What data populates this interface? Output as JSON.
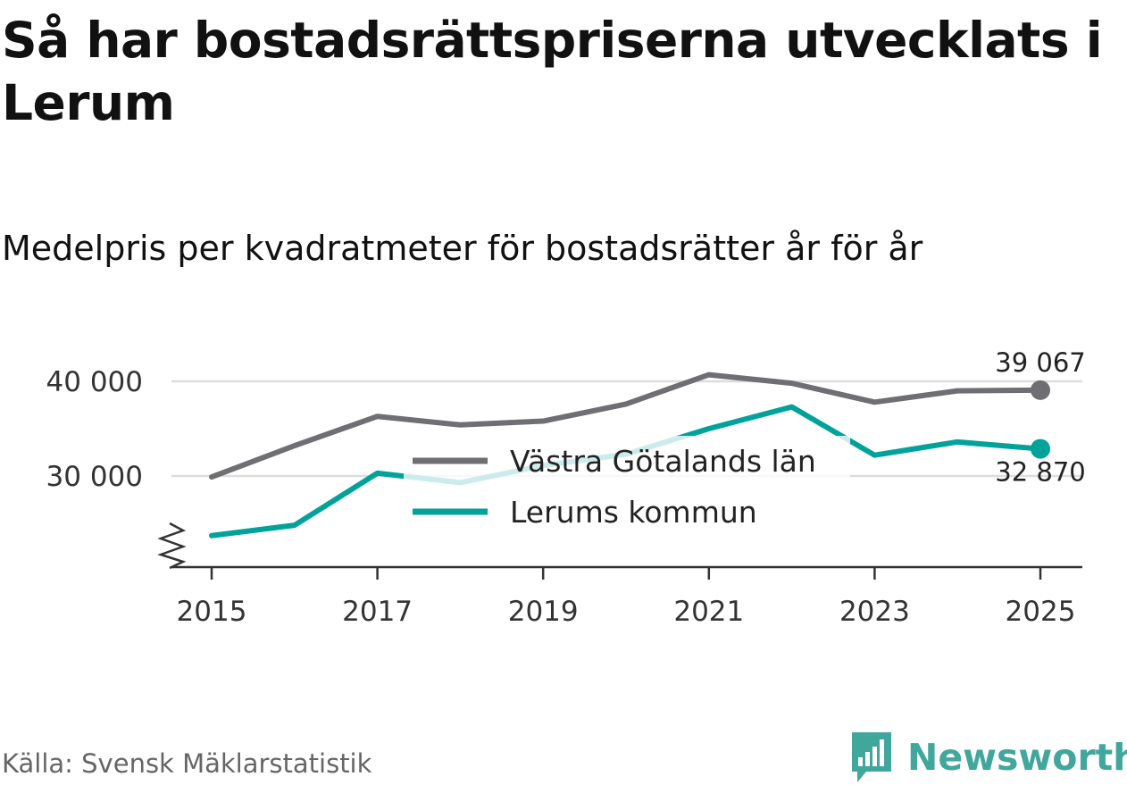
{
  "title": "Så har bostadsrättspriserna utvecklats i Lerum",
  "subtitle": "Medelpris per kvadratmeter för bostadsrätter år för år",
  "source": "Källa: Svensk Mäklarstatistik",
  "brand": "Newsworthy",
  "colors": {
    "vgl": "#6f6e73",
    "lerum": "#00a29a",
    "grid": "#dddddd",
    "axis": "#333333",
    "brand": "#41a69c"
  },
  "chart_data": {
    "type": "line",
    "title": "Medelpris per kvadratmeter för bostadsrätter år för år",
    "x": [
      2015,
      2016,
      2017,
      2018,
      2019,
      2020,
      2021,
      2022,
      2023,
      2024,
      2025
    ],
    "series": [
      {
        "name": "Västra Götalands län",
        "key": "vgl",
        "values": [
          29900,
          33200,
          36300,
          35400,
          35800,
          37600,
          40700,
          39800,
          37800,
          39000,
          39067
        ],
        "end_label": "39 067"
      },
      {
        "name": "Lerums kommun",
        "key": "lerum",
        "values": [
          23700,
          24800,
          30300,
          29300,
          31100,
          32300,
          35000,
          37300,
          32200,
          33600,
          32870
        ],
        "end_label": "32 870"
      }
    ],
    "xlim": [
      2014.5,
      2025.5
    ],
    "ylim": [
      20000,
      41500
    ],
    "yticks": [
      30000,
      40000
    ],
    "ytick_labels": [
      "30 000",
      "40 000"
    ],
    "xticks": [
      2015,
      2017,
      2019,
      2021,
      2023,
      2025
    ],
    "xtick_labels": [
      "2015",
      "2017",
      "2019",
      "2021",
      "2023",
      "2025"
    ],
    "grid": true,
    "legend_position": "center"
  }
}
